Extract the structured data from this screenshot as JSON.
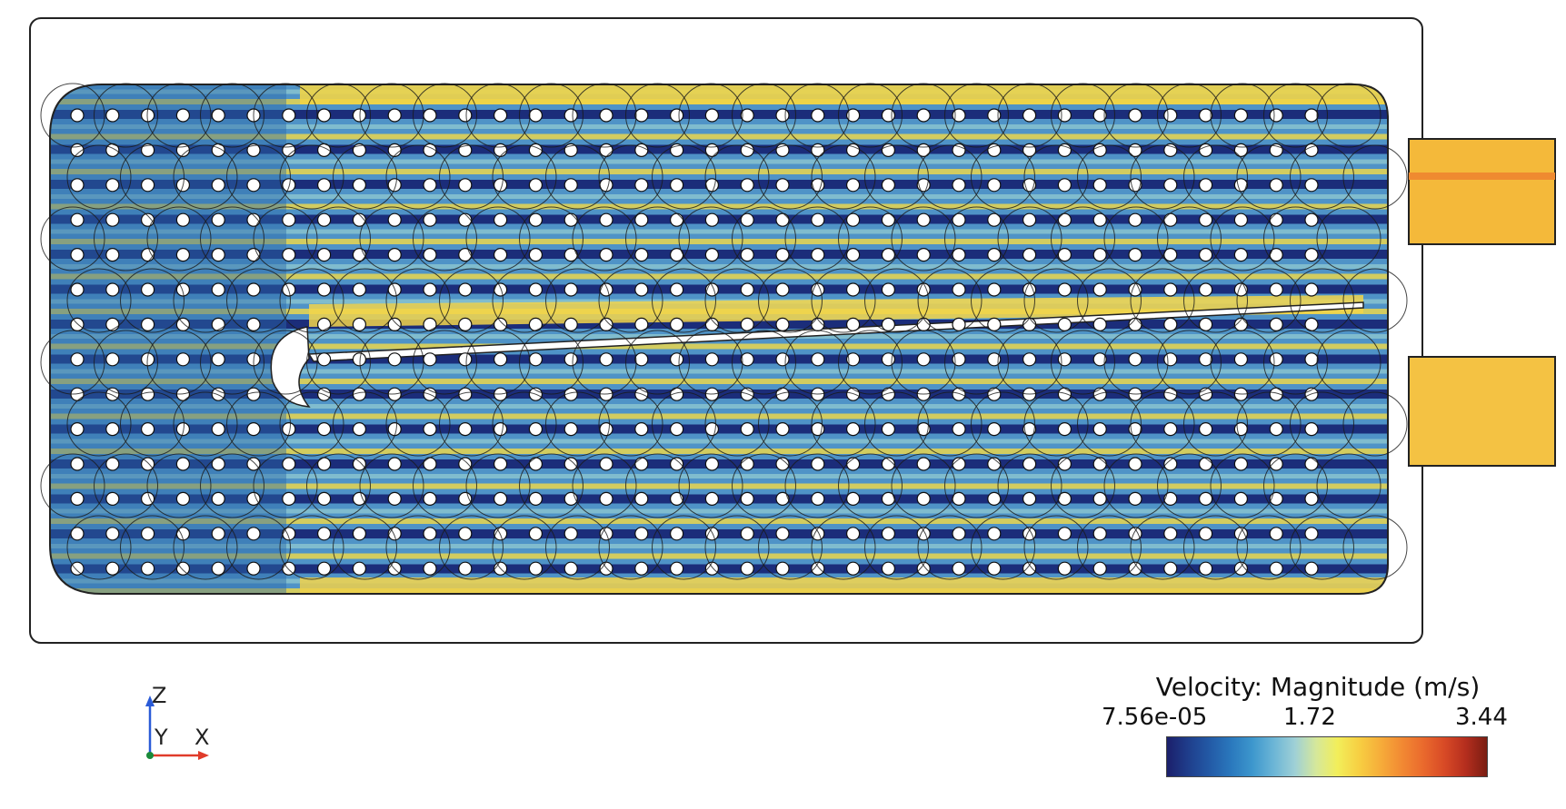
{
  "legend": {
    "title": "Velocity: Magnitude (m/s)",
    "min_label": "7.56e-05",
    "mid_label": "1.72",
    "max_label": "3.44",
    "min": 7.56e-05,
    "max": 3.44,
    "colormap": [
      "#1b1f6b",
      "#1f3e8c",
      "#235aa6",
      "#2a78bd",
      "#3d97cd",
      "#6bb5d6",
      "#9fd0d6",
      "#d6e89a",
      "#f2ee5a",
      "#f7cf42",
      "#f6ad3a",
      "#f28a33",
      "#ea6a2d",
      "#d84a26",
      "#b52e1e",
      "#7a1d12"
    ]
  },
  "axes": {
    "z_label": "Z",
    "y_label": "Y",
    "x_label": "X",
    "z_color": "#2a5bd7",
    "x_color": "#e03b2a",
    "origin_color": "#1a8a3a"
  }
}
